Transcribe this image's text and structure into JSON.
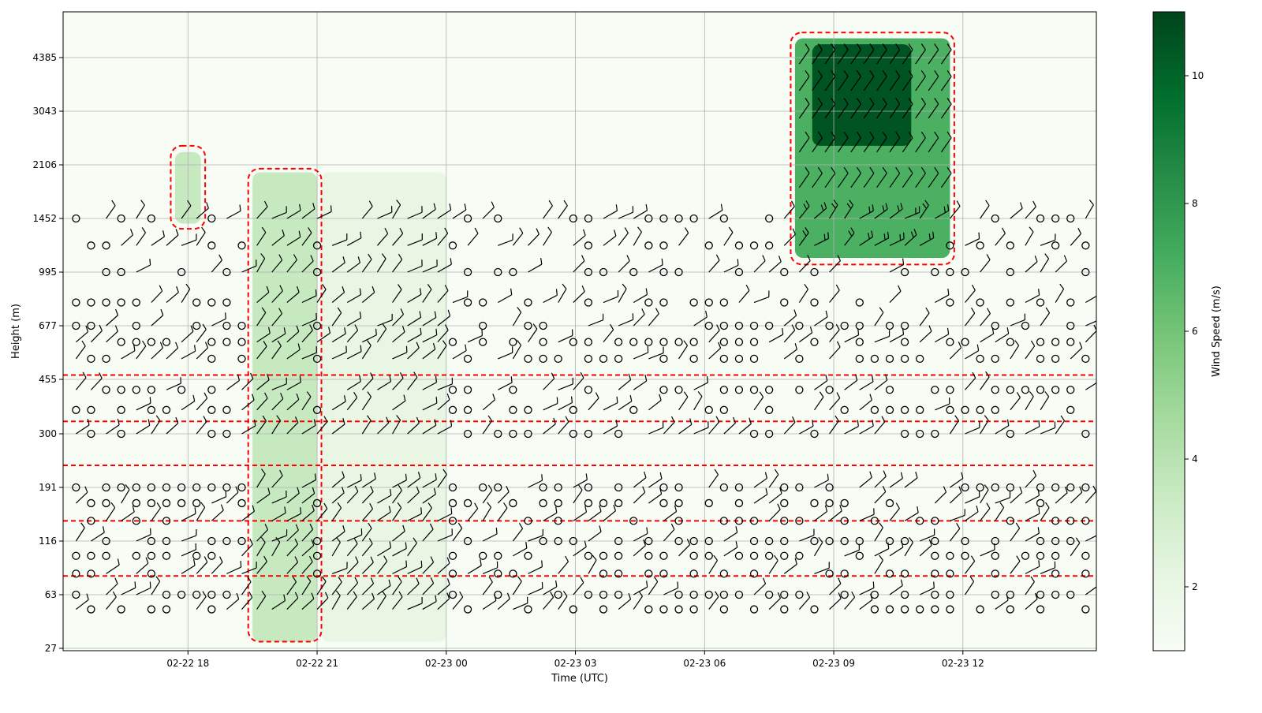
{
  "chart_data": {
    "type": "heatmap",
    "title": "",
    "xlabel": "Time (UTC)",
    "ylabel": "Height (m)",
    "x_ticks": [
      {
        "t": 18,
        "label": "02-22 18"
      },
      {
        "t": 21,
        "label": "02-22 21"
      },
      {
        "t": 24,
        "label": "02-23 00"
      },
      {
        "t": 27,
        "label": "02-23 03"
      },
      {
        "t": 30,
        "label": "02-23 06"
      },
      {
        "t": 33,
        "label": "02-23 09"
      },
      {
        "t": 36,
        "label": "02-23 12"
      }
    ],
    "x_range_hours": [
      15.1,
      39.1
    ],
    "y_scale": "log",
    "y_ticks": [
      27,
      63,
      116,
      191,
      300,
      455,
      677,
      995,
      1452,
      2106,
      3043,
      4385
    ],
    "grid": true,
    "colorbar": {
      "label": "Wind Speed (m/s)",
      "ticks": [
        2,
        4,
        6,
        8,
        10
      ],
      "range": [
        1,
        11
      ],
      "colormap": [
        "#f7fcf5",
        "#e5f5e0",
        "#c7e9c0",
        "#a1d99b",
        "#74c476",
        "#41ab5d",
        "#238b45",
        "#006d2c",
        "#00441b"
      ]
    },
    "overlays": {
      "wind_barbs": "black",
      "contour_line": "#ff0000",
      "calm_marker": "circle"
    },
    "wind_speed_regions": [
      {
        "t": [
          17.7,
          18.3
        ],
        "h": [
          1400,
          2300
        ],
        "speed": 3.5
      },
      {
        "t": [
          19.5,
          21.0
        ],
        "h": [
          30,
          2000
        ],
        "speed": 3.5
      },
      {
        "t": [
          21.1,
          24.0
        ],
        "h": [
          30,
          2000
        ],
        "speed": 2.0
      },
      {
        "t": [
          32.1,
          35.7
        ],
        "h": [
          1100,
          5000
        ],
        "speed": 7.0
      },
      {
        "t": [
          32.5,
          34.8
        ],
        "h": [
          2400,
          4800
        ],
        "speed": 10.5
      }
    ]
  }
}
